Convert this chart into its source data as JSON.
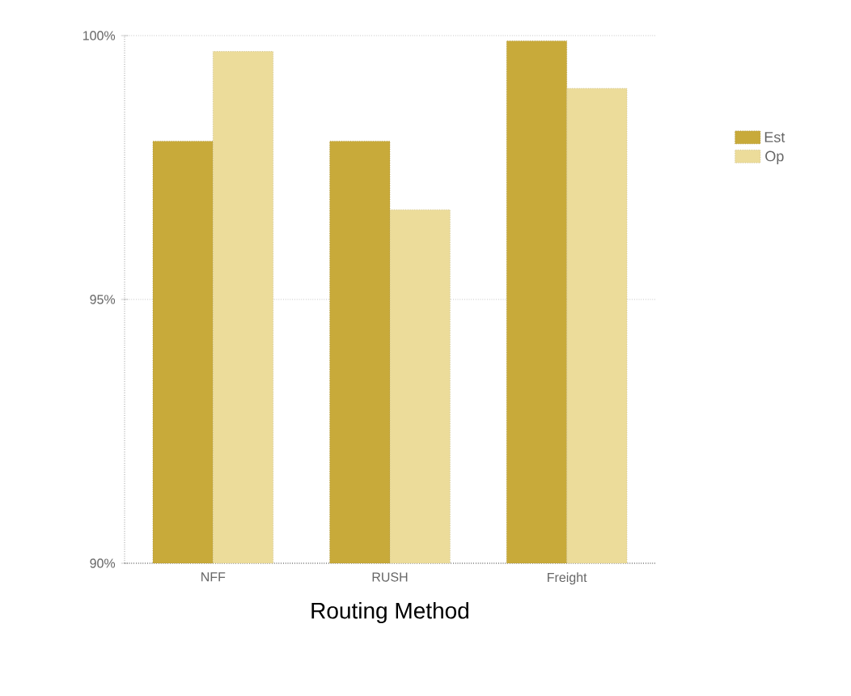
{
  "chart_data": {
    "type": "bar",
    "xlabel": "Routing Method",
    "categories": [
      "NFF",
      "RUSH",
      "Freight"
    ],
    "series": [
      {
        "name": "Est",
        "color": "#c8aa3a",
        "values": [
          98.0,
          98.0,
          99.9
        ]
      },
      {
        "name": "Op",
        "color": "#ecdc9a",
        "values": [
          99.7,
          96.7,
          99.0
        ]
      }
    ],
    "ylim": [
      90,
      100
    ],
    "yticks": [
      {
        "value": 90,
        "label": "90%"
      },
      {
        "value": 95,
        "label": "95%"
      },
      {
        "value": 100,
        "label": "100%"
      }
    ],
    "grid": "y",
    "legend": "right"
  }
}
